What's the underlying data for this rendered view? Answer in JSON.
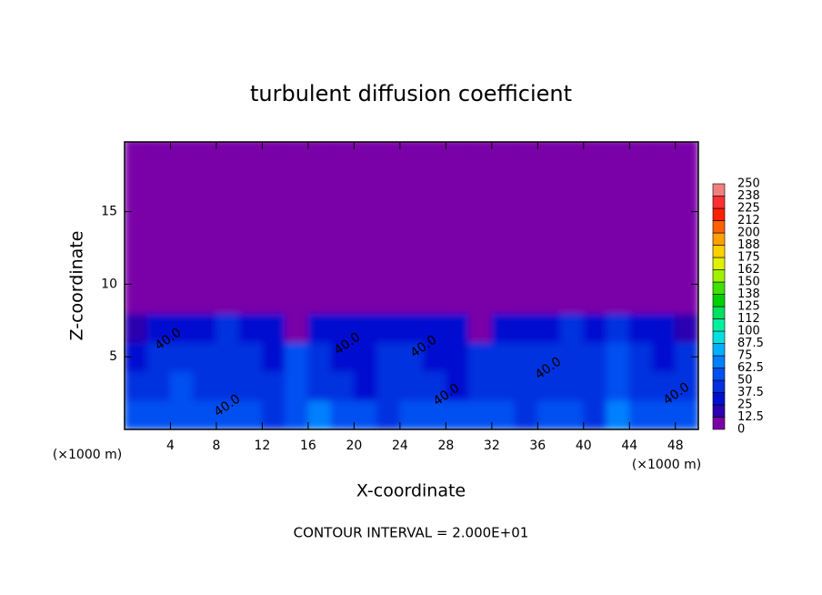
{
  "chart_data": {
    "type": "heatmap",
    "title": "turbulent diffusion coefficient",
    "x_label": "X-coordinate",
    "y_label": "Z-coordinate",
    "x_unit": "(×1000 m)",
    "y_unit": "(×1000 m)",
    "footer": "CONTOUR INTERVAL = 2.000E+01",
    "xlim": [
      0,
      50
    ],
    "ylim": [
      0,
      19.8
    ],
    "xticks": [
      4,
      8,
      12,
      16,
      20,
      24,
      28,
      32,
      36,
      40,
      44,
      48
    ],
    "yticks": [
      5,
      10,
      15
    ],
    "cell_width": 2,
    "cell_height": 2,
    "z": [
      [
        50,
        60,
        55,
        50,
        55,
        50,
        45,
        60,
        65,
        55,
        50,
        45,
        55,
        50,
        60,
        50,
        55,
        45,
        55,
        50,
        45,
        70,
        50,
        55,
        50
      ],
      [
        40,
        45,
        50,
        38,
        40,
        45,
        40,
        55,
        40,
        38,
        35,
        40,
        45,
        38,
        35,
        38,
        40,
        45,
        40,
        38,
        45,
        60,
        40,
        38,
        40
      ],
      [
        35,
        40,
        38,
        40,
        38,
        45,
        35,
        50,
        38,
        35,
        30,
        38,
        40,
        35,
        30,
        45,
        38,
        40,
        38,
        45,
        40,
        55,
        45,
        35,
        38
      ],
      [
        20,
        30,
        35,
        35,
        38,
        30,
        25,
        10,
        30,
        35,
        30,
        35,
        30,
        35,
        25,
        10,
        25,
        35,
        30,
        38,
        35,
        40,
        30,
        25,
        15
      ],
      [
        0,
        0,
        0,
        0,
        0,
        0,
        0,
        0,
        0,
        0,
        0,
        0,
        0,
        0,
        0,
        0,
        0,
        0,
        0,
        0,
        0,
        0,
        0,
        0,
        0
      ],
      [
        0,
        0,
        0,
        0,
        0,
        0,
        0,
        0,
        0,
        0,
        0,
        0,
        0,
        0,
        0,
        0,
        0,
        0,
        0,
        0,
        0,
        0,
        0,
        0,
        0
      ],
      [
        0,
        0,
        0,
        0,
        0,
        0,
        0,
        0,
        0,
        0,
        0,
        0,
        0,
        0,
        0,
        0,
        0,
        0,
        0,
        0,
        0,
        0,
        0,
        0,
        0
      ],
      [
        0,
        0,
        0,
        0,
        0,
        0,
        0,
        0,
        0,
        0,
        0,
        0,
        0,
        0,
        0,
        0,
        0,
        0,
        0,
        0,
        0,
        0,
        0,
        0,
        0
      ],
      [
        0,
        0,
        0,
        0,
        0,
        0,
        0,
        0,
        0,
        0,
        0,
        0,
        0,
        0,
        0,
        0,
        0,
        0,
        0,
        0,
        0,
        0,
        0,
        0,
        0
      ],
      [
        0,
        0,
        0,
        0,
        0,
        0,
        0,
        0,
        0,
        0,
        0,
        0,
        0,
        0,
        0,
        0,
        0,
        0,
        0,
        0,
        0,
        0,
        0,
        0,
        0
      ]
    ],
    "contour_labels": [
      "40.0",
      "40.0",
      "40.0",
      "40.0",
      "40.0",
      "40.0",
      "40.0"
    ],
    "colorbar": {
      "ticks": [
        0,
        12.5,
        25,
        37.5,
        50,
        62.5,
        75,
        87.5,
        100,
        112,
        125,
        138,
        150,
        162,
        175,
        188,
        200,
        212,
        225,
        238,
        250
      ],
      "colors": [
        "#7a00a8",
        "#2a00b0",
        "#0010d0",
        "#0030e0",
        "#0050f0",
        "#0080ff",
        "#00b0ff",
        "#00e0e0",
        "#00f0a0",
        "#00e060",
        "#00d000",
        "#40e000",
        "#a0f000",
        "#e0f000",
        "#ffd000",
        "#ffa000",
        "#ff6000",
        "#ff2000",
        "#ff3030",
        "#f08080"
      ]
    }
  }
}
